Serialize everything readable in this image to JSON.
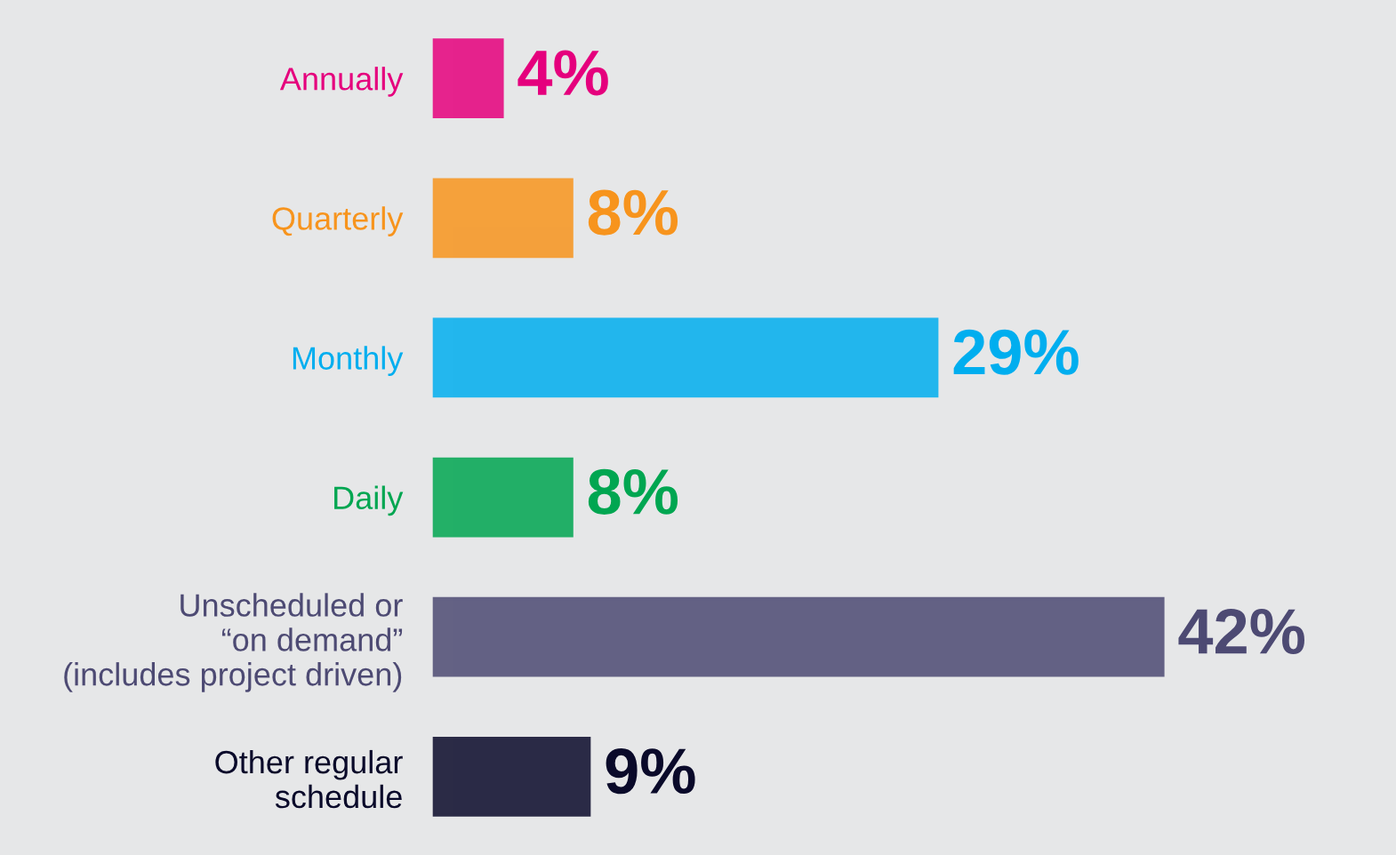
{
  "chart_data": {
    "type": "bar",
    "orientation": "horizontal",
    "categories": [
      "Annually",
      "Quarterly",
      "Monthly",
      "Daily",
      "Unscheduled or\n“on demand”\n(includes project driven)",
      "Other regular\nschedule"
    ],
    "values": [
      4,
      8,
      29,
      8,
      42,
      9
    ],
    "value_labels": [
      "4%",
      "8%",
      "29%",
      "8%",
      "42%",
      "9%"
    ],
    "colors": [
      "#e5007d",
      "#f7941d",
      "#00aeef",
      "#00a651",
      "#4d4a73",
      "#0a0a2a"
    ],
    "tick_labels": "y",
    "grid": false,
    "legend": false
  }
}
